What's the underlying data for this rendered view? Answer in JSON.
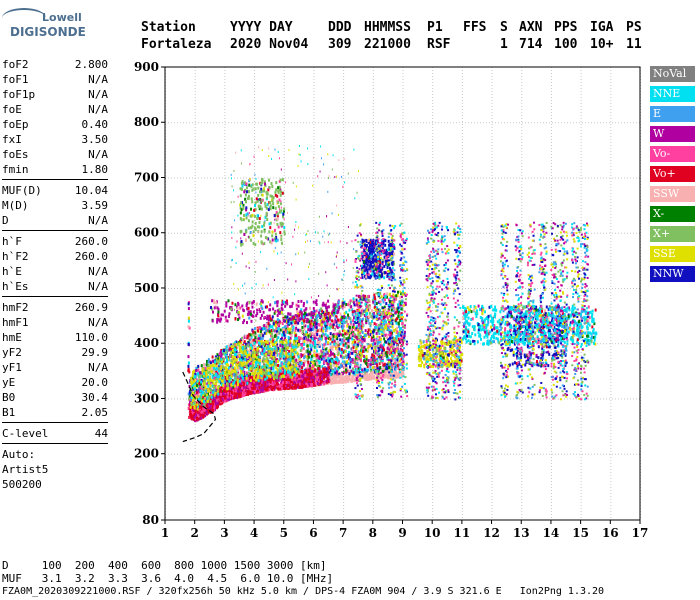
{
  "logo": {
    "line1": "Lowell",
    "line2": "DIGISONDE"
  },
  "header": {
    "row1": [
      "Station",
      "YYYY DAY",
      "DDD",
      "HHMMSS",
      "P1",
      "FFS",
      "S",
      "AXN",
      "PPS",
      "IGA",
      "PS"
    ],
    "row2": [
      "Fortaleza",
      "2020 Nov04",
      "309",
      "221000",
      "RSF",
      "1",
      "714",
      "100",
      "10+",
      "11"
    ]
  },
  "params": {
    "group1": [
      {
        "label": "foF2",
        "value": "2.800"
      },
      {
        "label": "foF1",
        "value": "N/A"
      },
      {
        "label": "foF1p",
        "value": "N/A"
      },
      {
        "label": "foE",
        "value": "N/A"
      },
      {
        "label": "foEp",
        "value": "0.40"
      },
      {
        "label": "fxI",
        "value": "3.50"
      },
      {
        "label": "foEs",
        "value": "N/A"
      },
      {
        "label": "fmin",
        "value": "1.80"
      }
    ],
    "group2": [
      {
        "label": "MUF(D)",
        "value": "10.04"
      },
      {
        "label": "M(D)",
        "value": "3.59"
      },
      {
        "label": "D",
        "value": "N/A"
      }
    ],
    "group3": [
      {
        "label": "h`F",
        "value": "260.0"
      },
      {
        "label": "h`F2",
        "value": "260.0"
      },
      {
        "label": "h`E",
        "value": "N/A"
      },
      {
        "label": "h`Es",
        "value": "N/A"
      }
    ],
    "group4": [
      {
        "label": "hmF2",
        "value": "260.9"
      },
      {
        "label": "hmF1",
        "value": "N/A"
      },
      {
        "label": "hmE",
        "value": "110.0"
      },
      {
        "label": "yF2",
        "value": "29.9"
      },
      {
        "label": "yF1",
        "value": "N/A"
      },
      {
        "label": "yE",
        "value": "20.0"
      },
      {
        "label": "B0",
        "value": "30.4"
      },
      {
        "label": "B1",
        "value": "2.05"
      }
    ],
    "clevel": {
      "label": "C-level",
      "value": "44"
    },
    "auto": [
      "Auto:",
      "Artist5",
      "500200"
    ]
  },
  "legend": [
    {
      "label": "NoVal",
      "color": "#808080"
    },
    {
      "label": "NNE",
      "color": "#00e0f0"
    },
    {
      "label": "E",
      "color": "#40a0f0"
    },
    {
      "label": "W",
      "color": "#b000a0"
    },
    {
      "label": "Vo-",
      "color": "#ff40a0"
    },
    {
      "label": "Vo+",
      "color": "#e00020"
    },
    {
      "label": "SSW",
      "color": "#f8b0b0"
    },
    {
      "label": "X-",
      "color": "#008000"
    },
    {
      "label": "X+",
      "color": "#80c060"
    },
    {
      "label": "SSE",
      "color": "#e0e000"
    },
    {
      "label": "NNW",
      "color": "#1010c0"
    }
  ],
  "bottom": {
    "line1": "D     100  200  400  600  800 1000 1500 3000 [km]",
    "line2": "MUF   3.1  3.2  3.3  3.6  4.0  4.5  6.0 10.0 [MHz]",
    "line3": "FZA0M_2020309221000.RSF / 320fx256h 50 kHz 5.0 km / DPS-4 FZA0M 904 / 3.9 S 321.6 E   Ion2Png 1.3.20"
  },
  "chart_data": {
    "type": "scatter",
    "title": "",
    "xlabel": "",
    "ylabel": "",
    "xlim": [
      1,
      17
    ],
    "ylim": [
      80,
      900
    ],
    "xticks": [
      1,
      2,
      3,
      4,
      5,
      6,
      7,
      8,
      9,
      10,
      11,
      12,
      13,
      14,
      15,
      16,
      17
    ],
    "yticks": [
      80,
      200,
      300,
      400,
      500,
      600,
      700,
      800,
      900
    ],
    "grid": true,
    "legend_position": "right",
    "trace_lower": [
      [
        1.75,
        268
      ],
      [
        2.0,
        262
      ],
      [
        2.3,
        270
      ],
      [
        2.6,
        280
      ],
      [
        2.9,
        295
      ],
      [
        3.2,
        302
      ],
      [
        3.5,
        306
      ],
      [
        3.9,
        312
      ],
      [
        4.5,
        318
      ],
      [
        5.0,
        320
      ],
      [
        5.5,
        322
      ],
      [
        6.0,
        326
      ],
      [
        6.5,
        330
      ],
      [
        7.0,
        332
      ],
      [
        7.5,
        335
      ],
      [
        8.0,
        338
      ],
      [
        8.5,
        340
      ],
      [
        9.0,
        342
      ]
    ],
    "trace_upper": [
      [
        1.8,
        340
      ],
      [
        2.0,
        358
      ],
      [
        2.3,
        368
      ],
      [
        2.6,
        382
      ],
      [
        3.0,
        395
      ],
      [
        3.5,
        410
      ],
      [
        4.0,
        430
      ],
      [
        4.5,
        440
      ],
      [
        5.0,
        450
      ],
      [
        5.5,
        458
      ],
      [
        6.0,
        460
      ],
      [
        6.5,
        470
      ],
      [
        7.0,
        480
      ],
      [
        7.5,
        488
      ],
      [
        8.0,
        492
      ],
      [
        8.5,
        495
      ],
      [
        9.0,
        500
      ]
    ],
    "clusters": [
      {
        "label": "NNW",
        "x": [
          7.6,
          8.7
        ],
        "y": [
          520,
          590
        ]
      },
      {
        "label": "NNW",
        "x": [
          12.5,
          14.5
        ],
        "y": [
          360,
          470
        ]
      },
      {
        "label": "NNE",
        "x": [
          11.0,
          15.5
        ],
        "y": [
          400,
          470
        ]
      },
      {
        "label": "SSE",
        "x": [
          9.5,
          11.0
        ],
        "y": [
          360,
          410
        ]
      },
      {
        "label": "W",
        "x": [
          2.5,
          7.0
        ],
        "y": [
          440,
          480
        ]
      },
      {
        "label": "X+",
        "x": [
          3.5,
          5.0
        ],
        "y": [
          580,
          700
        ]
      }
    ],
    "model_curve": [
      [
        1.6,
        348
      ],
      [
        1.75,
        330
      ],
      [
        1.95,
        305
      ],
      [
        2.3,
        285
      ],
      [
        2.65,
        272
      ],
      [
        2.7,
        262
      ],
      [
        2.3,
        236
      ],
      [
        1.95,
        228
      ],
      [
        1.6,
        222
      ]
    ]
  }
}
